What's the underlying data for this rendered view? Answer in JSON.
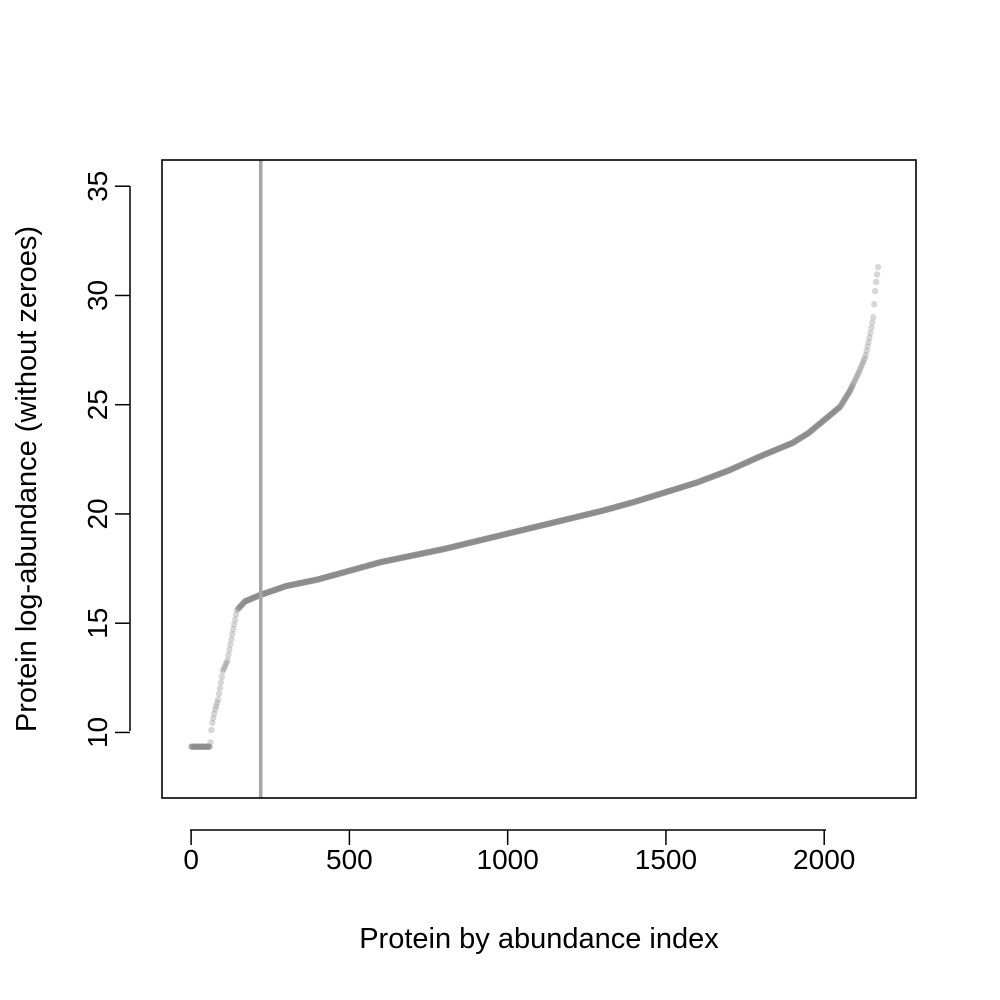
{
  "chart_data": {
    "type": "scatter",
    "title": "",
    "xlabel": "Protein by abundance index",
    "ylabel": "Protein log-abundance (without zeroes)",
    "xlim": [
      -92,
      2290
    ],
    "ylim": [
      7,
      36.2
    ],
    "xticks": [
      0,
      500,
      1000,
      1500,
      2000
    ],
    "xtick_labels": [
      "0",
      "500",
      "1000",
      "1500",
      "2000"
    ],
    "yticks": [
      10,
      15,
      20,
      25,
      30,
      35
    ],
    "ytick_labels": [
      "10",
      "15",
      "20",
      "25",
      "30",
      "35"
    ],
    "vline_x": 220,
    "grid": false,
    "legend": "none",
    "point_color": "#8c8c8c",
    "vline_color": "#a6a6a6",
    "series": [
      {
        "curve": [
          [
            1,
            9.35
          ],
          [
            60,
            9.35
          ],
          [
            65,
            10.3
          ],
          [
            75,
            11.0
          ],
          [
            85,
            11.5
          ],
          [
            100,
            12.8
          ],
          [
            115,
            13.3
          ],
          [
            130,
            14.5
          ],
          [
            145,
            15.6
          ],
          [
            170,
            16.0
          ],
          [
            220,
            16.3
          ],
          [
            300,
            16.7
          ],
          [
            400,
            17.0
          ],
          [
            500,
            17.4
          ],
          [
            600,
            17.8
          ],
          [
            700,
            18.1
          ],
          [
            800,
            18.4
          ],
          [
            900,
            18.75
          ],
          [
            1000,
            19.1
          ],
          [
            1100,
            19.45
          ],
          [
            1200,
            19.8
          ],
          [
            1300,
            20.15
          ],
          [
            1400,
            20.55
          ],
          [
            1500,
            21.0
          ],
          [
            1600,
            21.45
          ],
          [
            1700,
            22.0
          ],
          [
            1800,
            22.65
          ],
          [
            1900,
            23.25
          ],
          [
            1950,
            23.7
          ],
          [
            2000,
            24.3
          ],
          [
            2050,
            24.9
          ],
          [
            2080,
            25.6
          ],
          [
            2110,
            26.5
          ],
          [
            2130,
            27.2
          ],
          [
            2145,
            28.2
          ],
          [
            2155,
            29.0
          ],
          [
            2162,
            30.4
          ],
          [
            2170,
            31.3
          ]
        ]
      }
    ]
  }
}
